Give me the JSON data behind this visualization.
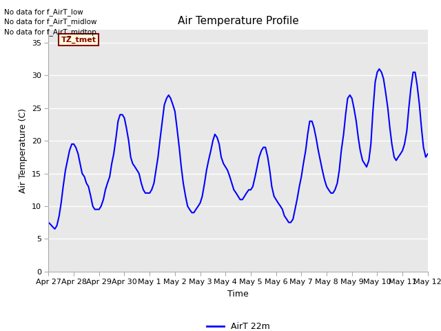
{
  "title": "Air Temperature Profile",
  "xlabel": "Time",
  "ylabel": "Air Temperature (C)",
  "ylim": [
    0,
    37
  ],
  "yticks": [
    0,
    5,
    10,
    15,
    20,
    25,
    30,
    35
  ],
  "line_color": "#0000FF",
  "line_width": 1.5,
  "legend_label": "AirT 22m",
  "annotations": [
    "No data for f_AirT_low",
    "No data for f_AirT_midlow",
    "No data for f_AirT_midtop"
  ],
  "legend_box_label": "TZ_tmet",
  "fig_bg_color": "#ffffff",
  "plot_bg_color": "#e8e8e8",
  "xtick_labels": [
    "Apr 27",
    "Apr 28",
    "Apr 29",
    "Apr 30",
    "May 1",
    "May 2",
    "May 3",
    "May 4",
    "May 5",
    "May 6",
    "May 7",
    "May 8",
    "May 9",
    "May 10",
    "May 11",
    "May 12"
  ],
  "full_x": [
    0,
    0.08,
    0.17,
    0.25,
    0.33,
    0.42,
    0.5,
    0.58,
    0.67,
    0.75,
    0.83,
    0.92,
    1,
    1.08,
    1.17,
    1.25,
    1.33,
    1.42,
    1.5,
    1.58,
    1.67,
    1.75,
    1.83,
    1.92,
    2,
    2.08,
    2.17,
    2.25,
    2.33,
    2.42,
    2.5,
    2.58,
    2.67,
    2.75,
    2.83,
    2.92,
    3,
    3.08,
    3.17,
    3.25,
    3.33,
    3.42,
    3.5,
    3.58,
    3.67,
    3.75,
    3.83,
    3.92,
    4,
    4.08,
    4.17,
    4.25,
    4.33,
    4.42,
    4.5,
    4.58,
    4.67,
    4.75,
    4.83,
    4.92,
    5,
    5.08,
    5.17,
    5.25,
    5.33,
    5.42,
    5.5,
    5.58,
    5.67,
    5.75,
    5.83,
    5.92,
    6,
    6.08,
    6.17,
    6.25,
    6.33,
    6.42,
    6.5,
    6.58,
    6.67,
    6.75,
    6.83,
    6.92,
    7,
    7.08,
    7.17,
    7.25,
    7.33,
    7.42,
    7.5,
    7.58,
    7.67,
    7.75,
    7.83,
    7.92,
    8,
    8.08,
    8.17,
    8.25,
    8.33,
    8.42,
    8.5,
    8.58,
    8.67,
    8.75,
    8.83,
    8.92,
    9,
    9.08,
    9.17,
    9.25,
    9.33,
    9.42,
    9.5,
    9.58,
    9.67,
    9.75,
    9.83,
    9.92,
    10,
    10.08,
    10.17,
    10.25,
    10.33,
    10.42,
    10.5,
    10.58,
    10.67,
    10.75,
    10.83,
    10.92,
    11,
    11.08,
    11.17,
    11.25,
    11.33,
    11.42,
    11.5,
    11.58,
    11.67,
    11.75,
    11.83,
    11.92,
    12,
    12.08,
    12.17,
    12.25,
    12.33,
    12.42,
    12.5,
    12.58,
    12.67,
    12.75,
    12.83,
    12.92,
    13,
    13.08,
    13.17,
    13.25,
    13.33,
    13.42,
    13.5,
    13.58,
    13.67,
    13.75,
    13.83,
    13.92,
    14,
    14.08,
    14.17,
    14.25,
    14.33,
    14.42,
    14.5,
    14.58,
    14.67,
    14.75,
    14.83,
    14.92,
    15
  ],
  "full_y": [
    7.5,
    7.2,
    6.8,
    6.5,
    7.0,
    8.5,
    10.5,
    13.0,
    15.5,
    17.0,
    18.5,
    19.5,
    19.5,
    19.0,
    18.0,
    16.5,
    15.0,
    14.5,
    13.5,
    13.0,
    11.5,
    10.0,
    9.5,
    9.5,
    9.5,
    10.0,
    11.0,
    12.5,
    13.5,
    14.5,
    16.5,
    18.0,
    20.5,
    23.0,
    24.0,
    24.0,
    23.5,
    22.0,
    20.0,
    17.5,
    16.5,
    16.0,
    15.5,
    15.0,
    13.5,
    12.5,
    12.0,
    12.0,
    12.0,
    12.5,
    13.5,
    15.5,
    17.5,
    20.5,
    23.0,
    25.5,
    26.5,
    27.0,
    26.5,
    25.5,
    24.5,
    22.0,
    19.0,
    16.0,
    13.5,
    11.5,
    10.0,
    9.5,
    9.0,
    9.0,
    9.5,
    10.0,
    10.5,
    11.5,
    13.5,
    15.5,
    17.0,
    18.5,
    20.0,
    21.0,
    20.5,
    19.5,
    17.5,
    16.5,
    16.0,
    15.5,
    14.5,
    13.5,
    12.5,
    12.0,
    11.5,
    11.0,
    11.0,
    11.5,
    12.0,
    12.5,
    12.5,
    13.0,
    14.5,
    16.0,
    17.5,
    18.5,
    19.0,
    19.0,
    17.5,
    15.5,
    13.0,
    11.5,
    11.0,
    10.5,
    10.0,
    9.5,
    8.5,
    8.0,
    7.5,
    7.5,
    8.0,
    9.5,
    11.0,
    13.0,
    14.5,
    16.5,
    18.5,
    21.0,
    23.0,
    23.0,
    22.0,
    20.5,
    18.5,
    17.0,
    15.5,
    14.0,
    13.0,
    12.5,
    12.0,
    12.0,
    12.5,
    13.5,
    15.5,
    18.5,
    21.0,
    24.0,
    26.5,
    27.0,
    26.5,
    25.0,
    23.0,
    20.5,
    18.5,
    17.0,
    16.5,
    16.0,
    17.0,
    19.5,
    24.5,
    29.0,
    30.5,
    31.0,
    30.5,
    29.5,
    27.5,
    25.0,
    22.0,
    19.5,
    17.5,
    17.0,
    17.5,
    18.0,
    18.5,
    19.5,
    21.5,
    25.0,
    28.0,
    30.5,
    30.5,
    28.5,
    25.5,
    22.0,
    19.0,
    17.5,
    18.0
  ],
  "figsize": [
    6.4,
    4.8
  ],
  "dpi": 100
}
